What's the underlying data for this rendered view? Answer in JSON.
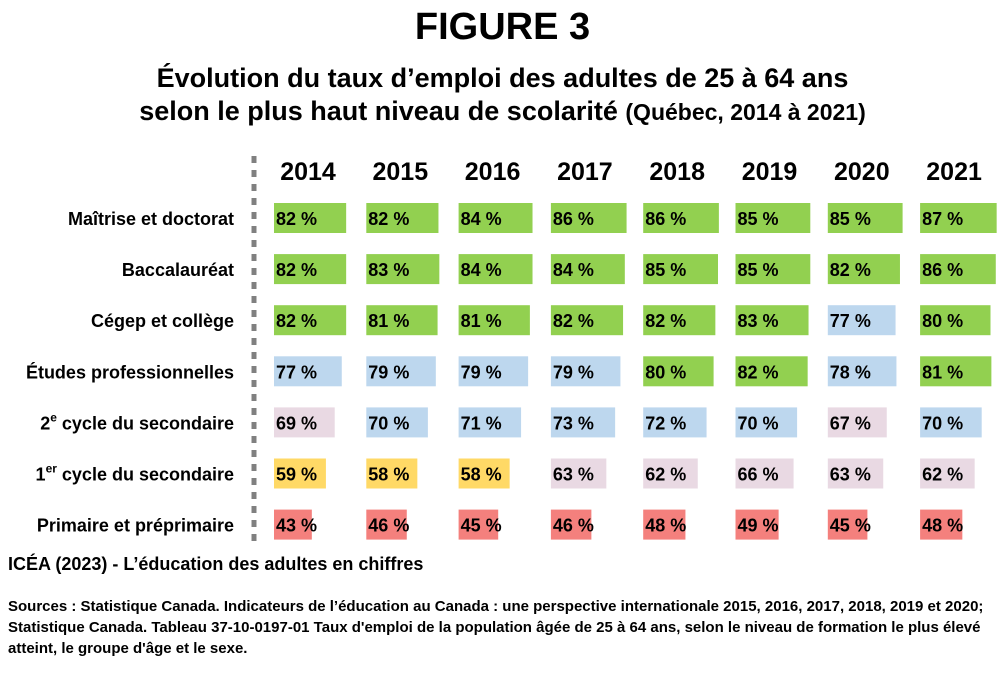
{
  "figure_label": "FIGURE 3",
  "title": {
    "line1": "Évolution du taux d’emploi des adultes de 25 à 64 ans",
    "line2": "selon le plus haut niveau de scolarité",
    "line2_suffix": "(Québec, 2014 à  2021)"
  },
  "credit": "ICÉA (2023) - L’éducation des adultes en chiffres",
  "sources": "Sources : Statistique Canada. Indicateurs de l’éducation au Canada : une perspective internationale 2015, 2016, 2017, 2018, 2019 et 2020; Statistique Canada. Tableau 37-10-0197-01  Taux d'emploi de la population âgée de 25 à 64 ans, selon le niveau de formation le plus élevé atteint, le groupe d'âge et le sexe.",
  "colors": {
    "green": "#92d050",
    "blue": "#bdd7ee",
    "pink": "#e9d9e3",
    "yellow": "#ffd966",
    "red": "#f4807d",
    "axis": "#808080"
  },
  "chart_data": {
    "type": "table",
    "value_suffix": " %",
    "years": [
      "2014",
      "2015",
      "2016",
      "2017",
      "2018",
      "2019",
      "2020",
      "2021"
    ],
    "rows": [
      {
        "label": "Maîtrise et doctorat",
        "sup": "",
        "label_rest": "",
        "values": [
          82,
          82,
          84,
          86,
          86,
          85,
          85,
          87
        ],
        "colors": [
          "green",
          "green",
          "green",
          "green",
          "green",
          "green",
          "green",
          "green"
        ]
      },
      {
        "label": "Baccalauréat",
        "sup": "",
        "label_rest": "",
        "values": [
          82,
          83,
          84,
          84,
          85,
          85,
          82,
          86
        ],
        "colors": [
          "green",
          "green",
          "green",
          "green",
          "green",
          "green",
          "green",
          "green"
        ]
      },
      {
        "label": "Cégep et collège",
        "sup": "",
        "label_rest": "",
        "values": [
          82,
          81,
          81,
          82,
          82,
          83,
          77,
          80
        ],
        "colors": [
          "green",
          "green",
          "green",
          "green",
          "green",
          "green",
          "blue",
          "green"
        ]
      },
      {
        "label": "Études professionnelles",
        "sup": "",
        "label_rest": "",
        "values": [
          77,
          79,
          79,
          79,
          80,
          82,
          78,
          81
        ],
        "colors": [
          "blue",
          "blue",
          "blue",
          "blue",
          "green",
          "green",
          "blue",
          "green"
        ]
      },
      {
        "label": "2",
        "sup": "e",
        "label_rest": " cycle du secondaire",
        "values": [
          69,
          70,
          71,
          73,
          72,
          70,
          67,
          70
        ],
        "colors": [
          "pink",
          "blue",
          "blue",
          "blue",
          "blue",
          "blue",
          "pink",
          "blue"
        ]
      },
      {
        "label": "1",
        "sup": "er",
        "label_rest": " cycle du secondaire",
        "values": [
          59,
          58,
          58,
          63,
          62,
          66,
          63,
          62
        ],
        "colors": [
          "yellow",
          "yellow",
          "yellow",
          "pink",
          "pink",
          "pink",
          "pink",
          "pink"
        ]
      },
      {
        "label": "Primaire et préprimaire",
        "sup": "",
        "label_rest": "",
        "values": [
          43,
          46,
          45,
          46,
          48,
          49,
          45,
          48
        ],
        "colors": [
          "red",
          "red",
          "red",
          "red",
          "red",
          "red",
          "red",
          "red"
        ]
      }
    ]
  }
}
